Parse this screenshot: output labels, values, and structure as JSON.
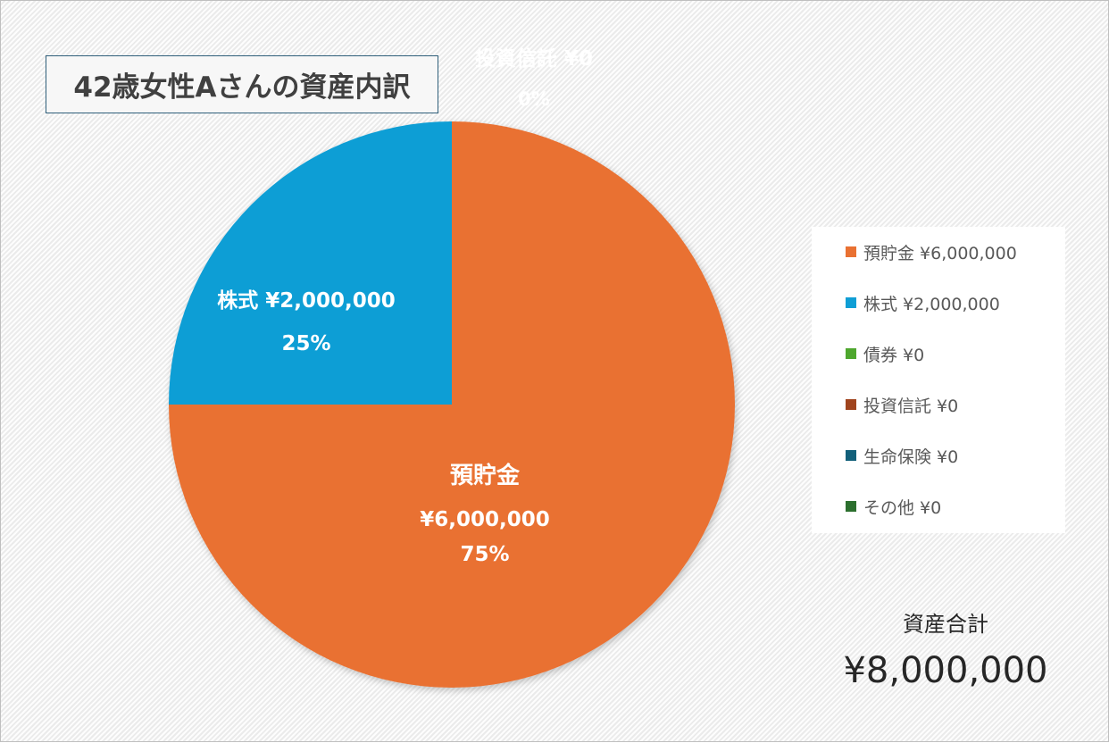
{
  "chart_data": {
    "type": "pie",
    "title": "42歳女性Aさんの資産内訳",
    "categories": [
      "預貯金",
      "株式",
      "債券",
      "投資信託",
      "生命保険",
      "その他"
    ],
    "values": [
      6000000,
      2000000,
      0,
      0,
      0,
      0
    ],
    "colors": [
      "#e97132",
      "#0f9ed5",
      "#4ea72e",
      "#a0441e",
      "#12607a",
      "#2c6f2e"
    ],
    "data_labels": [
      {
        "lines": [
          "預貯金",
          "¥6,000,000",
          "75%"
        ]
      },
      {
        "lines": [
          "株式 ¥2,000,000",
          "25%"
        ]
      },
      {
        "lines": [
          "投資信託 ¥0",
          "0%"
        ]
      }
    ],
    "legend_position": "right",
    "legend": [
      "預貯金 ¥6,000,000",
      "株式 ¥2,000,000",
      "債券 ¥0",
      "投資信託 ¥0",
      "生命保険 ¥0",
      "その他 ¥0"
    ]
  },
  "summary": {
    "total_label": "資産合計",
    "total_value": "¥8,000,000"
  }
}
